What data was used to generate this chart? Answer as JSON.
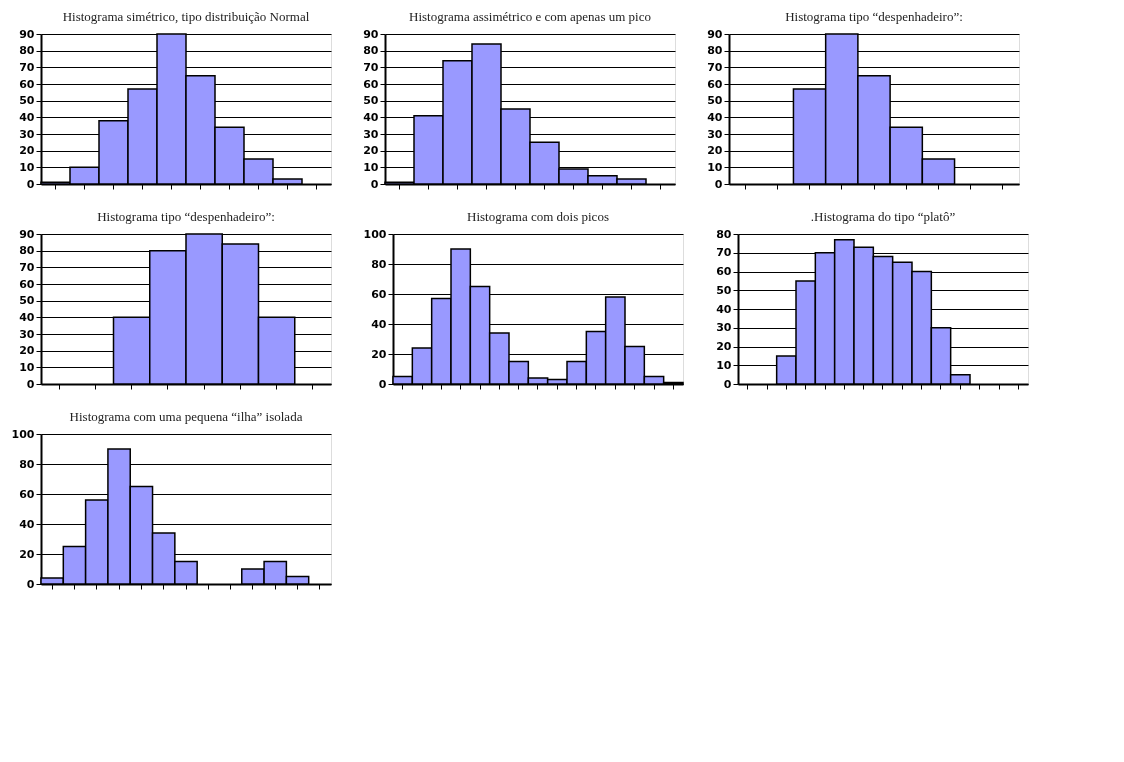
{
  "chart_data": [
    {
      "type": "bar",
      "title": "Histograma simétrico, tipo distribuição Normal",
      "categories": [
        null,
        null,
        null,
        null,
        null,
        null,
        null,
        null,
        null,
        null
      ],
      "values": [
        1,
        10,
        38,
        57,
        90,
        65,
        34,
        15,
        3,
        0
      ],
      "color": "#9999ff",
      "ylim": [
        0,
        90
      ],
      "yticks": [
        0,
        10,
        20,
        30,
        40,
        50,
        60,
        70,
        80,
        90
      ],
      "grid": "y",
      "tick_labels": "y"
    },
    {
      "type": "bar",
      "title": "Histograma assimétrico e com apenas um pico",
      "categories": [
        null,
        null,
        null,
        null,
        null,
        null,
        null,
        null,
        null,
        null
      ],
      "values": [
        1,
        41,
        74,
        84,
        45,
        25,
        9,
        5,
        3,
        0
      ],
      "color": "#9999ff",
      "ylim": [
        0,
        90
      ],
      "yticks": [
        0,
        10,
        20,
        30,
        40,
        50,
        60,
        70,
        80,
        90
      ],
      "grid": "y",
      "tick_labels": "y"
    },
    {
      "type": "bar",
      "title": "Histograma tipo “despenhadeiro”:",
      "categories": [
        null,
        null,
        null,
        null,
        null,
        null,
        null,
        null,
        null
      ],
      "values": [
        0,
        0,
        57,
        90,
        65,
        34,
        15,
        0,
        0
      ],
      "color": "#9999ff",
      "ylim": [
        0,
        90
      ],
      "yticks": [
        0,
        10,
        20,
        30,
        40,
        50,
        60,
        70,
        80,
        90
      ],
      "grid": "y",
      "tick_labels": "y"
    },
    {
      "type": "bar",
      "title": "Histograma tipo “despenhadeiro”:",
      "categories": [
        null,
        null,
        null,
        null,
        null,
        null,
        null,
        null
      ],
      "values": [
        0,
        0,
        40,
        80,
        90,
        84,
        40,
        0
      ],
      "color": "#9999ff",
      "ylim": [
        0,
        90
      ],
      "yticks": [
        0,
        10,
        20,
        30,
        40,
        50,
        60,
        70,
        80,
        90
      ],
      "grid": "y",
      "tick_labels": "y"
    },
    {
      "type": "bar",
      "title": "Histograma com dois picos",
      "categories": [
        null,
        null,
        null,
        null,
        null,
        null,
        null,
        null,
        null,
        null,
        null,
        null,
        null,
        null,
        null
      ],
      "values": [
        5,
        24,
        57,
        90,
        65,
        34,
        15,
        4,
        3,
        15,
        35,
        58,
        25,
        5,
        1
      ],
      "color": "#9999ff",
      "ylim": [
        0,
        100
      ],
      "yticks": [
        0,
        20,
        40,
        60,
        80,
        100
      ],
      "grid": "y",
      "tick_labels": "y"
    },
    {
      "type": "bar",
      "title": ".Histograma do tipo “platô”",
      "categories": [
        null,
        null,
        null,
        null,
        null,
        null,
        null,
        null,
        null,
        null,
        null,
        null,
        null,
        null,
        null
      ],
      "values": [
        0,
        0,
        15,
        55,
        70,
        77,
        73,
        68,
        65,
        60,
        30,
        5,
        0,
        0,
        0
      ],
      "color": "#9999ff",
      "ylim": [
        0,
        80
      ],
      "yticks": [
        0,
        10,
        20,
        30,
        40,
        50,
        60,
        70,
        80
      ],
      "grid": "y",
      "tick_labels": "y"
    },
    {
      "type": "bar",
      "title": "Histograma com uma pequena “ilha” isolada",
      "categories": [
        null,
        null,
        null,
        null,
        null,
        null,
        null,
        null,
        null,
        null,
        null,
        null,
        null
      ],
      "values": [
        4,
        25,
        56,
        90,
        65,
        34,
        15,
        0,
        0,
        10,
        15,
        5,
        0
      ],
      "color": "#9999ff",
      "ylim": [
        0,
        100
      ],
      "yticks": [
        0,
        20,
        40,
        60,
        80,
        100
      ],
      "grid": "y",
      "tick_labels": "y"
    }
  ]
}
